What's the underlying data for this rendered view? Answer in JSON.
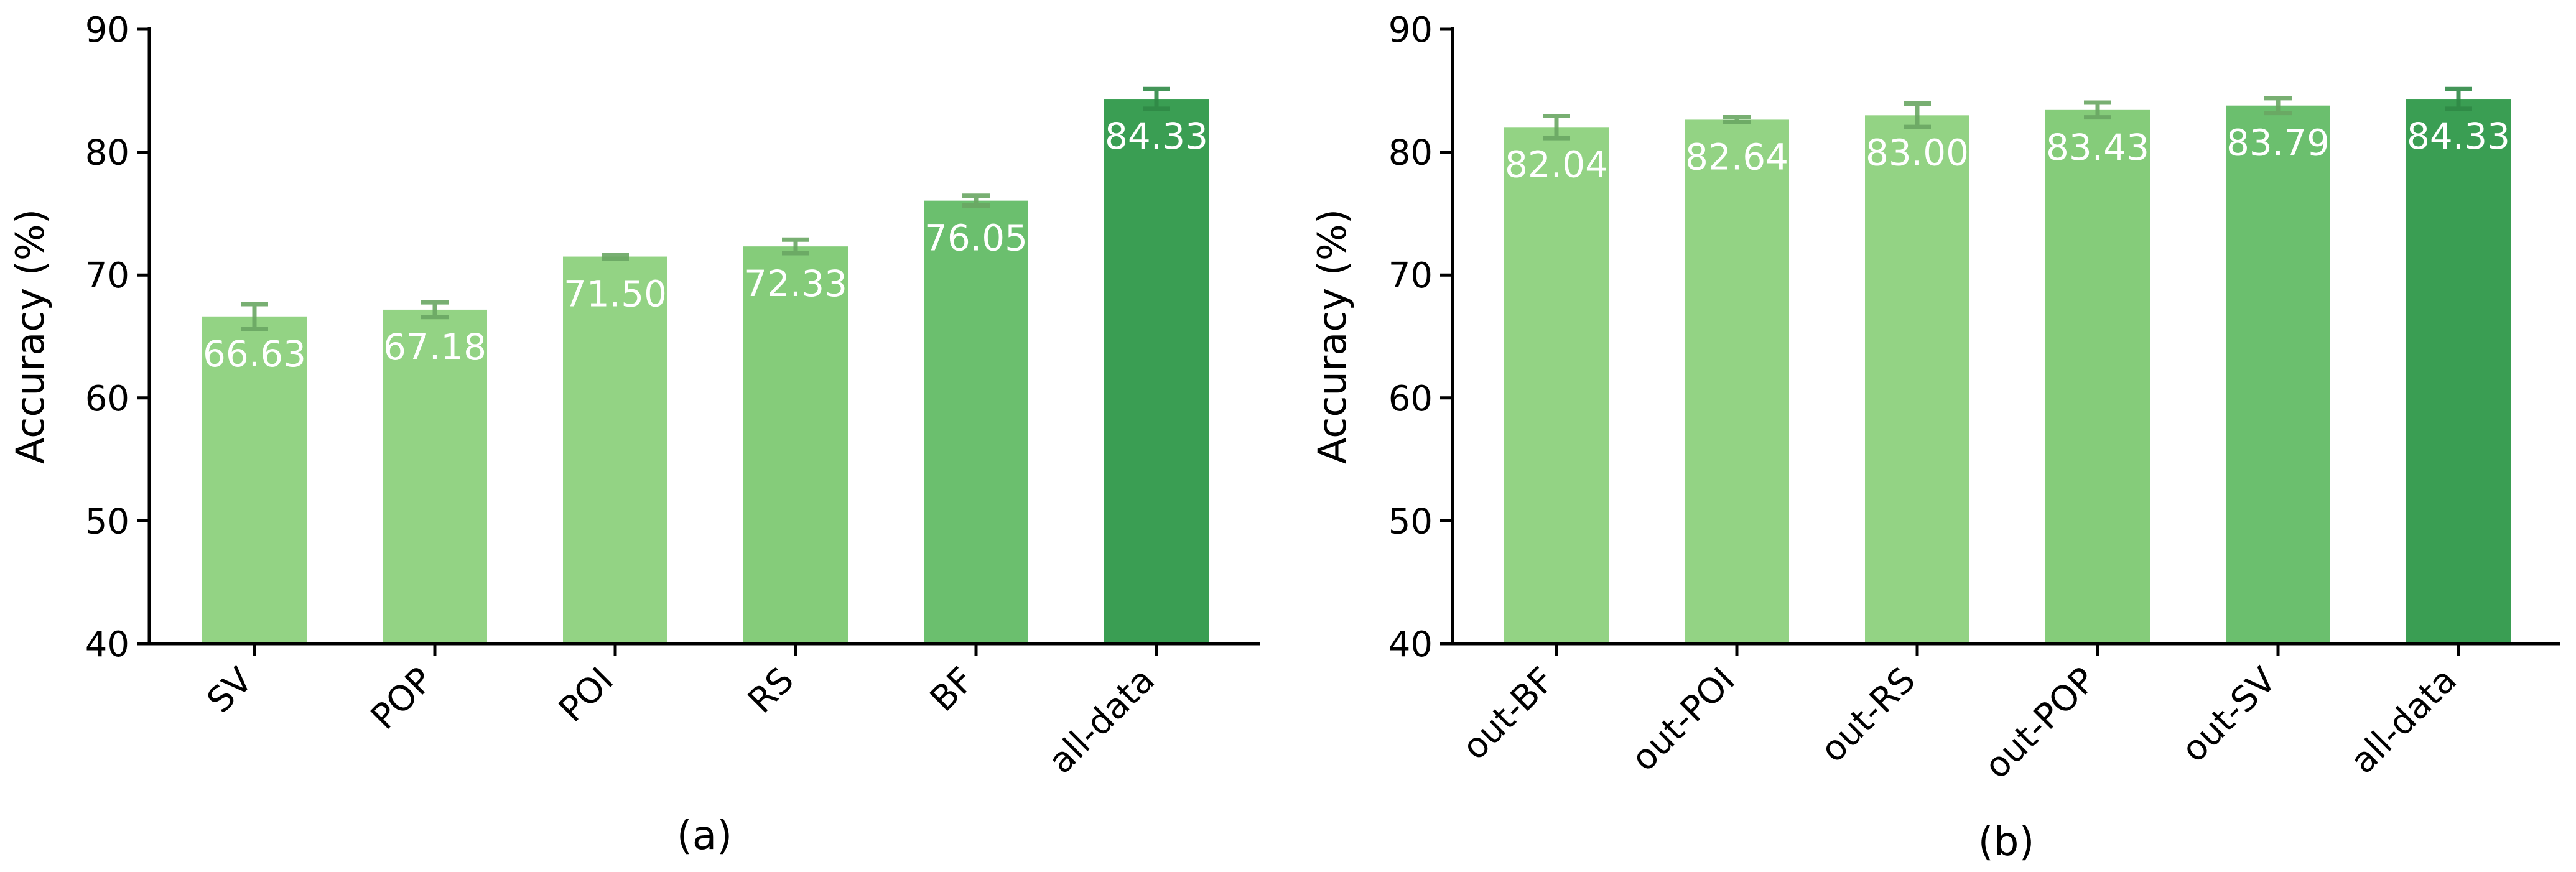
{
  "chart_data": [
    {
      "type": "bar",
      "caption": "(a)",
      "ylabel": "Accuracy (%)",
      "xlabel": "",
      "ylim": [
        40,
        90
      ],
      "yticks": [
        40,
        50,
        60,
        70,
        80,
        90
      ],
      "grid": false,
      "categories": [
        "SV",
        "POP",
        "POI",
        "RS",
        "BF",
        "all-data"
      ],
      "values": [
        66.63,
        67.18,
        71.5,
        72.33,
        76.05,
        84.33
      ],
      "value_labels": [
        "66.63",
        "67.18",
        "71.50",
        "72.33",
        "76.05",
        "84.33"
      ],
      "error": [
        1.0,
        0.6,
        0.15,
        0.55,
        0.4,
        0.8
      ],
      "colors": [
        "#93d384",
        "#93d384",
        "#93d384",
        "#85cc7a",
        "#6bbf6e",
        "#3a9e53"
      ]
    },
    {
      "type": "bar",
      "caption": "(b)",
      "ylabel": "Accuracy (%)",
      "xlabel": "",
      "ylim": [
        40,
        90
      ],
      "yticks": [
        40,
        50,
        60,
        70,
        80,
        90
      ],
      "grid": false,
      "categories": [
        "out-BF",
        "out-POI",
        "out-RS",
        "out-POP",
        "out-SV",
        "all-data"
      ],
      "values": [
        82.04,
        82.64,
        83.0,
        83.43,
        83.79,
        84.33
      ],
      "value_labels": [
        "82.04",
        "82.64",
        "83.00",
        "83.43",
        "83.79",
        "84.33"
      ],
      "error": [
        0.9,
        0.2,
        0.95,
        0.6,
        0.6,
        0.8
      ],
      "colors": [
        "#93d384",
        "#93d384",
        "#93d384",
        "#85cc7a",
        "#6bbf6e",
        "#3a9e53"
      ]
    }
  ]
}
